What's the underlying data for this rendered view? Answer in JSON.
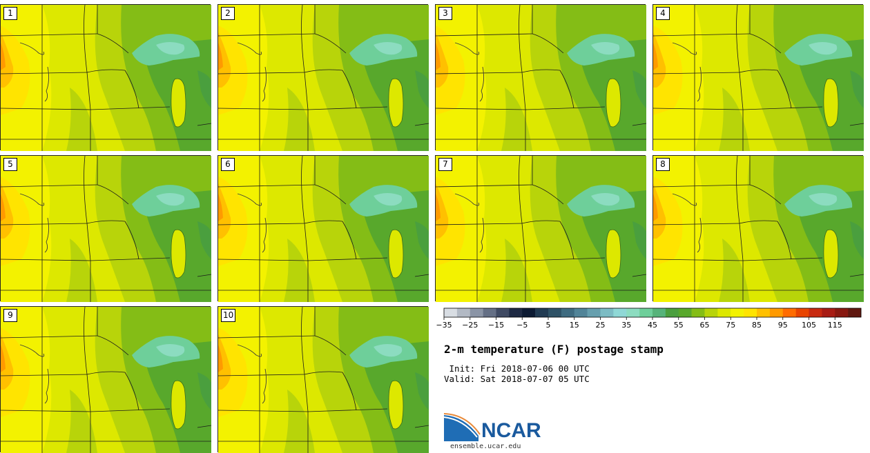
{
  "title": "2-m temperature (F) postage stamp",
  "init_line": " Init: Fri 2018-07-06 00 UTC",
  "valid_line": "Valid: Sat 2018-07-07 05 UTC",
  "logo": {
    "name": "NCAR",
    "url": "ensemble.ucar.edu"
  },
  "members": [
    "1",
    "2",
    "3",
    "4",
    "5",
    "6",
    "7",
    "8",
    "9",
    "10"
  ],
  "colorbar": {
    "colors": [
      "#d8dde3",
      "#b2b9c4",
      "#8a94a6",
      "#646f85",
      "#3f4a63",
      "#1e2a44",
      "#0c1a33",
      "#203a52",
      "#2e5266",
      "#3e6b80",
      "#518498",
      "#669fae",
      "#7cbcc4",
      "#8fd8d6",
      "#8cdcc0",
      "#6ecf9a",
      "#56b37a",
      "#4a9f3e",
      "#58a82c",
      "#84bd16",
      "#b8d40a",
      "#dde800",
      "#f3f200",
      "#ffe400",
      "#ffc000",
      "#ff9a00",
      "#ff6c00",
      "#e84400",
      "#c82a10",
      "#a81c14",
      "#881810",
      "#601810"
    ],
    "tick_labels": [
      "−35",
      "−25",
      "−15",
      "−5",
      "5",
      "15",
      "25",
      "35",
      "45",
      "55",
      "65",
      "75",
      "85",
      "95",
      "105",
      "115"
    ],
    "ticks": [
      -35,
      -25,
      -15,
      -5,
      5,
      15,
      25,
      35,
      45,
      55,
      65,
      75,
      85,
      95,
      105,
      115
    ],
    "min": -35,
    "max": 125
  }
}
